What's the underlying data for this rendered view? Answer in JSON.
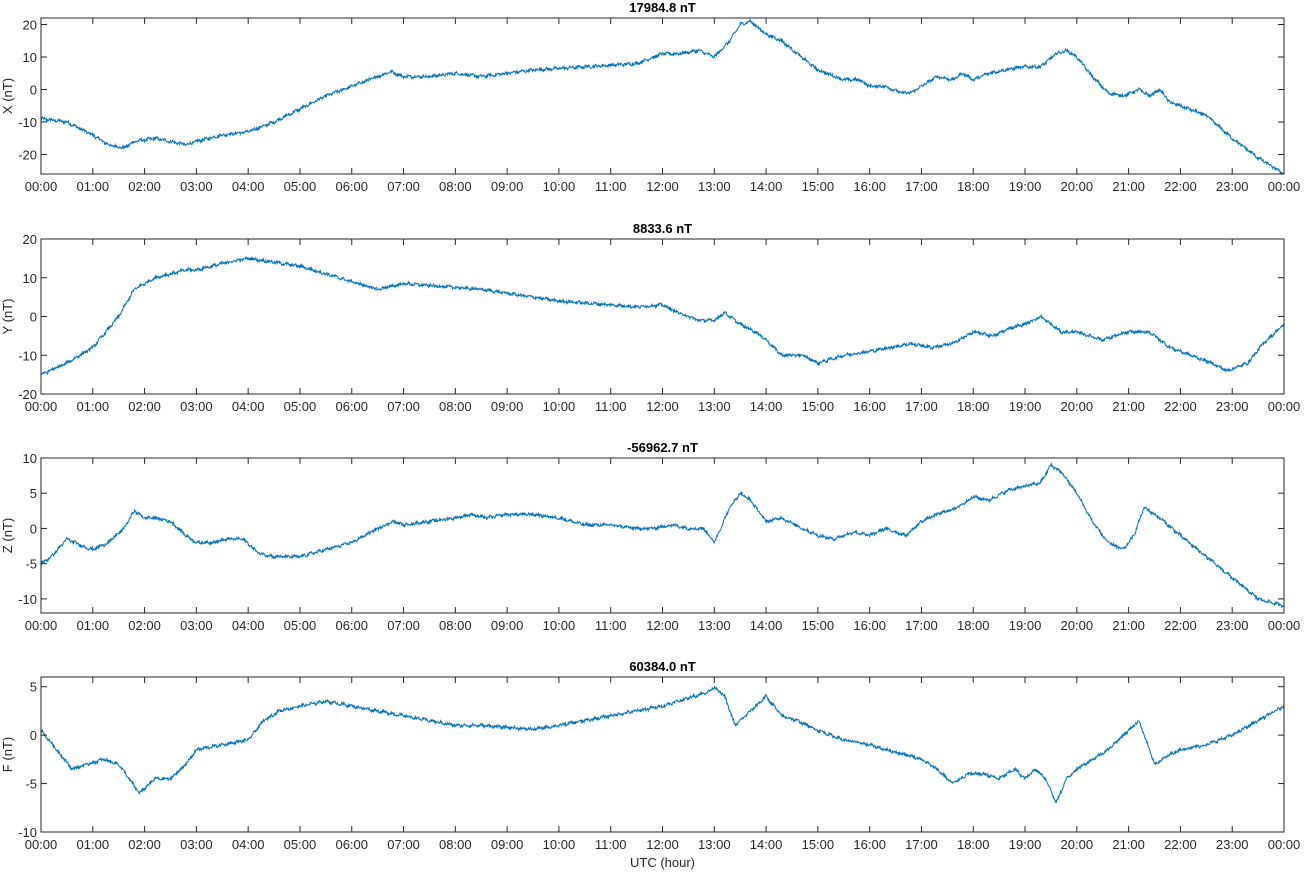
{
  "figure": {
    "xlabel": "UTC (hour)"
  },
  "chart_data": [
    {
      "type": "line",
      "title": "17984.8 nT",
      "xlabel": "",
      "ylabel": "X (nT)",
      "xlim": [
        0,
        24
      ],
      "ylim": [
        -26,
        22
      ],
      "yticks": [
        -20,
        -10,
        0,
        10,
        20
      ],
      "xtick_labels": [
        "00:00",
        "01:00",
        "02:00",
        "03:00",
        "04:00",
        "05:00",
        "06:00",
        "07:00",
        "08:00",
        "09:00",
        "10:00",
        "11:00",
        "12:00",
        "13:00",
        "14:00",
        "15:00",
        "16:00",
        "17:00",
        "18:00",
        "19:00",
        "20:00",
        "21:00",
        "22:00",
        "23:00",
        "00:00"
      ],
      "grid": false,
      "color": "#0072BD",
      "series": [
        {
          "x": [
            0,
            0.5,
            1,
            1.3,
            1.6,
            1.8,
            2.2,
            2.5,
            2.8,
            3,
            3.5,
            4,
            4.5,
            5,
            5.5,
            6,
            6.5,
            6.75,
            7,
            7.5,
            8,
            8.5,
            9,
            9.5,
            10,
            10.5,
            11,
            11.5,
            12,
            12.3,
            12.7,
            13,
            13.3,
            13.5,
            13.7,
            14,
            14.3,
            14.6,
            15,
            15.5,
            15.8,
            16,
            16.3,
            16.6,
            16.8,
            17,
            17.3,
            17.6,
            17.8,
            18,
            18.3,
            18.6,
            19,
            19.3,
            19.6,
            19.8,
            20,
            20.3,
            20.6,
            20.9,
            21.2,
            21.4,
            21.6,
            21.8,
            22,
            22.5,
            23,
            23.5,
            24
          ],
          "y": [
            -9,
            -10,
            -14,
            -17,
            -18,
            -16,
            -15,
            -16,
            -17,
            -16,
            -14,
            -13,
            -10,
            -6,
            -2,
            1,
            4,
            5.5,
            4,
            4,
            5,
            4,
            5,
            6,
            6.5,
            7,
            7.5,
            8,
            11,
            11,
            12,
            10,
            15,
            20,
            21,
            17,
            15,
            11,
            6,
            3,
            3,
            1,
            1,
            -1,
            -1,
            1,
            4,
            3,
            5,
            3,
            5,
            6,
            7,
            7,
            11,
            12,
            10,
            4,
            -1,
            -2,
            0,
            -2,
            0,
            -4,
            -5,
            -8,
            -15,
            -21,
            -26
          ]
        }
      ]
    },
    {
      "type": "line",
      "title": "8833.6 nT",
      "xlabel": "",
      "ylabel": "Y (nT)",
      "xlim": [
        0,
        24
      ],
      "ylim": [
        -20,
        20
      ],
      "yticks": [
        -20,
        -10,
        0,
        10,
        20
      ],
      "xtick_labels": [
        "00:00",
        "01:00",
        "02:00",
        "03:00",
        "04:00",
        "05:00",
        "06:00",
        "07:00",
        "08:00",
        "09:00",
        "10:00",
        "11:00",
        "12:00",
        "13:00",
        "14:00",
        "15:00",
        "16:00",
        "17:00",
        "18:00",
        "19:00",
        "20:00",
        "21:00",
        "22:00",
        "23:00",
        "00:00"
      ],
      "grid": false,
      "color": "#0072BD",
      "series": [
        {
          "x": [
            0,
            0.5,
            1,
            1.5,
            1.8,
            2.2,
            2.5,
            2.8,
            3,
            3.3,
            3.6,
            4,
            4.5,
            5,
            5.5,
            6,
            6.5,
            7,
            7.5,
            8,
            8.5,
            9,
            9.5,
            10,
            10.5,
            11,
            11.5,
            12,
            12.3,
            12.7,
            13,
            13.2,
            13.5,
            13.8,
            14,
            14.3,
            14.7,
            15,
            15.5,
            16,
            16.4,
            16.8,
            17.2,
            17.6,
            18,
            18.4,
            18.7,
            19,
            19.3,
            19.7,
            20,
            20.5,
            21,
            21.4,
            21.8,
            22.2,
            22.6,
            22.9,
            23.3,
            23.6,
            24
          ],
          "y": [
            -15,
            -12,
            -8,
            0,
            7,
            10,
            11,
            12,
            12,
            13,
            14,
            15,
            14,
            13,
            11,
            9,
            7,
            8.5,
            8,
            7.5,
            7,
            6,
            5,
            4,
            3.5,
            3,
            2.5,
            3,
            1,
            -1,
            -1,
            1,
            -2,
            -4,
            -6,
            -10,
            -10,
            -12,
            -10,
            -9,
            -8,
            -7,
            -8,
            -7,
            -4,
            -5,
            -3,
            -2,
            0,
            -4,
            -4,
            -6,
            -4,
            -4,
            -8,
            -10,
            -12,
            -14,
            -12,
            -7,
            -2
          ]
        }
      ]
    },
    {
      "type": "line",
      "title": "-56962.7 nT",
      "xlabel": "",
      "ylabel": "Z (nT)",
      "xlim": [
        0,
        24
      ],
      "ylim": [
        -12,
        10
      ],
      "yticks": [
        -10,
        -5,
        0,
        5,
        10
      ],
      "xtick_labels": [
        "00:00",
        "01:00",
        "02:00",
        "03:00",
        "04:00",
        "05:00",
        "06:00",
        "07:00",
        "08:00",
        "09:00",
        "10:00",
        "11:00",
        "12:00",
        "13:00",
        "14:00",
        "15:00",
        "16:00",
        "17:00",
        "18:00",
        "19:00",
        "20:00",
        "21:00",
        "22:00",
        "23:00",
        "00:00"
      ],
      "grid": false,
      "color": "#0072BD",
      "series": [
        {
          "x": [
            0,
            0.2,
            0.5,
            0.8,
            1,
            1.3,
            1.6,
            1.8,
            2,
            2.2,
            2.5,
            2.8,
            3,
            3.3,
            3.6,
            3.9,
            4.2,
            4.5,
            5,
            5.5,
            6,
            6.5,
            6.8,
            7,
            7.5,
            8,
            8.3,
            8.6,
            9,
            9.5,
            10,
            10.5,
            11,
            11.5,
            11.8,
            12.2,
            12.5,
            12.8,
            13,
            13.3,
            13.5,
            13.7,
            14,
            14.3,
            14.7,
            15,
            15.3,
            15.7,
            16,
            16.3,
            16.7,
            17,
            17.3,
            17.7,
            18,
            18.3,
            18.7,
            19,
            19.3,
            19.5,
            19.7,
            20,
            20.3,
            20.6,
            20.9,
            21.1,
            21.3,
            21.6,
            22,
            22.5,
            23,
            23.5,
            24
          ],
          "y": [
            -5,
            -4,
            -1.5,
            -2.5,
            -3,
            -2,
            0,
            2.5,
            1.5,
            1.5,
            1,
            -1,
            -2,
            -2,
            -1.5,
            -1.5,
            -3.5,
            -4,
            -4,
            -3,
            -2,
            0,
            1,
            0.5,
            1,
            1.5,
            2,
            1.5,
            2,
            2,
            1.5,
            0.5,
            0.5,
            0,
            0,
            0.5,
            0,
            0,
            -2,
            3,
            5,
            4,
            1,
            1.5,
            0,
            -1,
            -1.5,
            -0.5,
            -1,
            0,
            -1,
            1,
            2,
            3,
            4.5,
            4,
            5.5,
            6,
            6.5,
            9,
            8,
            5,
            1,
            -2,
            -3,
            -1,
            3,
            1.5,
            -1,
            -4,
            -7,
            -10,
            -11
          ]
        }
      ]
    },
    {
      "type": "line",
      "title": "60384.0 nT",
      "xlabel": "UTC (hour)",
      "ylabel": "F (nT)",
      "xlim": [
        0,
        24
      ],
      "ylim": [
        -10,
        6
      ],
      "yticks": [
        -10,
        -5,
        0,
        5
      ],
      "xtick_labels": [
        "00:00",
        "01:00",
        "02:00",
        "03:00",
        "04:00",
        "05:00",
        "06:00",
        "07:00",
        "08:00",
        "09:00",
        "10:00",
        "11:00",
        "12:00",
        "13:00",
        "14:00",
        "15:00",
        "16:00",
        "17:00",
        "18:00",
        "19:00",
        "20:00",
        "21:00",
        "22:00",
        "23:00",
        "00:00"
      ],
      "grid": false,
      "color": "#0072BD",
      "series": [
        {
          "x": [
            0,
            0.3,
            0.6,
            0.9,
            1.2,
            1.5,
            1.7,
            1.9,
            2.2,
            2.5,
            2.8,
            3,
            3.5,
            4,
            4.3,
            4.6,
            5,
            5.5,
            6,
            6.5,
            7,
            7.5,
            8,
            8.5,
            9,
            9.5,
            10,
            10.5,
            11,
            11.5,
            12,
            12.3,
            12.6,
            12.9,
            13,
            13.2,
            13.4,
            13.6,
            13.8,
            14,
            14.3,
            14.6,
            15,
            15.5,
            16,
            16.3,
            16.7,
            17,
            17.3,
            17.6,
            17.9,
            18.2,
            18.5,
            18.8,
            19,
            19.2,
            19.4,
            19.6,
            19.8,
            20,
            20.3,
            20.6,
            20.9,
            21.2,
            21.5,
            21.8,
            22,
            22.5,
            23,
            23.5,
            24
          ],
          "y": [
            0.5,
            -1.5,
            -3.5,
            -3,
            -2.5,
            -3,
            -4.5,
            -6,
            -4.5,
            -4.5,
            -3,
            -1.5,
            -1,
            -0.5,
            1.5,
            2.5,
            3,
            3.5,
            3,
            2.5,
            2,
            1.5,
            1,
            1,
            0.8,
            0.6,
            1,
            1.5,
            2,
            2.5,
            3,
            3.5,
            4,
            4.5,
            5,
            4,
            1,
            2,
            3,
            4,
            2,
            1.5,
            0.5,
            -0.5,
            -1,
            -1.5,
            -2,
            -2.5,
            -3.5,
            -5,
            -4,
            -4,
            -4.5,
            -3.5,
            -4.5,
            -3.5,
            -4.5,
            -7,
            -4.5,
            -3.5,
            -2.5,
            -1.5,
            0,
            1.5,
            -3,
            -2,
            -1.5,
            -1,
            0,
            1.5,
            3
          ]
        }
      ]
    }
  ]
}
